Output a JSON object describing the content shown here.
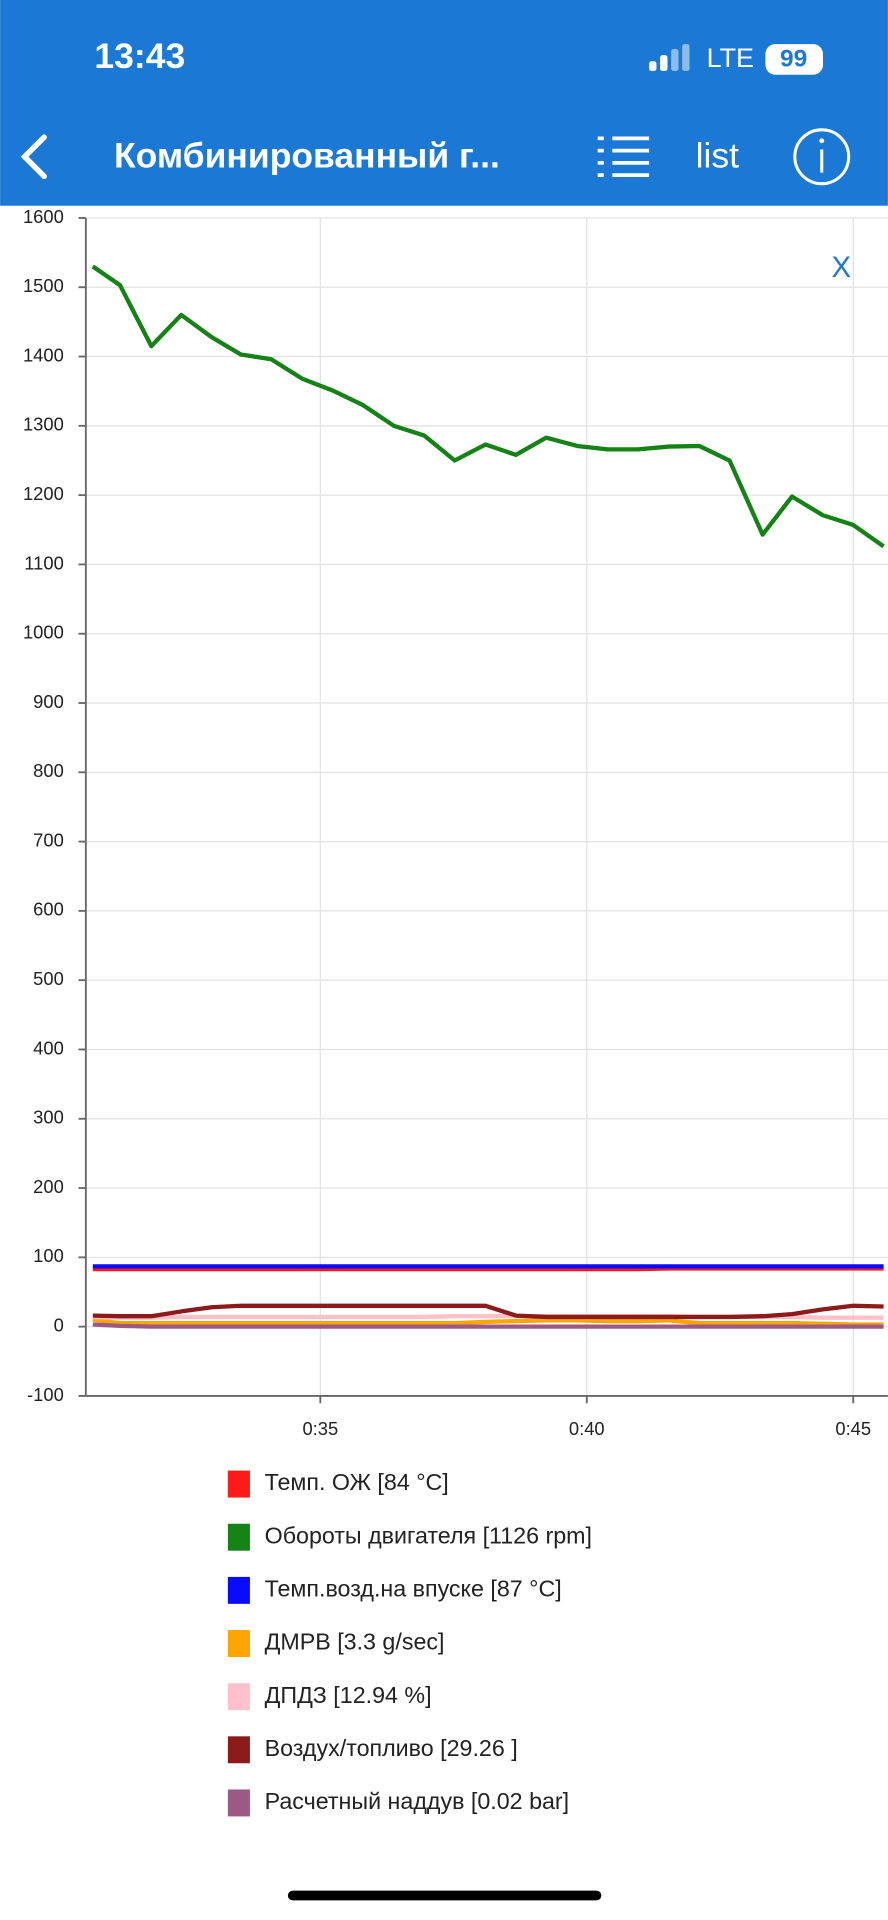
{
  "status_bar": {
    "time": "13:43",
    "network": "LTE",
    "battery": "99"
  },
  "header": {
    "title": "Комбинированный г...",
    "list_button": "list"
  },
  "close_button": "X",
  "chart_data": {
    "type": "line",
    "grid": true,
    "x": [
      30.73,
      31.24,
      31.83,
      32.39,
      32.96,
      33.51,
      34.08,
      34.66,
      35.23,
      35.8,
      36.38,
      36.95,
      37.52,
      38.1,
      38.67,
      39.24,
      39.82,
      40.39,
      40.96,
      41.54,
      42.11,
      42.68,
      43.3,
      43.85,
      44.43,
      45.0,
      45.57
    ],
    "xlim": [
      30.6,
      45.65
    ],
    "xticks": [
      {
        "value": 35,
        "label": "0:35"
      },
      {
        "value": 40,
        "label": "0:40"
      },
      {
        "value": 45,
        "label": "0:45"
      }
    ],
    "ylim": [
      -100,
      1600
    ],
    "yticks": [
      -100,
      0,
      100,
      200,
      300,
      400,
      500,
      600,
      700,
      800,
      900,
      1000,
      1100,
      1200,
      1300,
      1400,
      1500,
      1600
    ],
    "series": [
      {
        "name": "Темп. ОЖ [84 °C]",
        "color": "#ff1a1a",
        "values": [
          83,
          83,
          83,
          83,
          83,
          83,
          83,
          83,
          83,
          83,
          83,
          83,
          83,
          83,
          83,
          83,
          83,
          83,
          83,
          84,
          84,
          84,
          84,
          84,
          84,
          84,
          84
        ]
      },
      {
        "name": "Обороты двигателя [1126 rpm]",
        "color": "#148214",
        "values": [
          1530,
          1503,
          1415,
          1460,
          1428,
          1403,
          1396,
          1368,
          1351,
          1330,
          1300,
          1286,
          1250,
          1273,
          1258,
          1283,
          1271,
          1266,
          1266,
          1270,
          1271,
          1250,
          1143,
          1198,
          1171,
          1157,
          1126
        ]
      },
      {
        "name": "Темп.возд.на впуске [87 °C]",
        "color": "#0a0aff",
        "values": [
          87,
          87,
          87,
          87,
          87,
          87,
          87,
          87,
          87,
          87,
          87,
          87,
          87,
          87,
          87,
          87,
          87,
          87,
          87,
          87,
          87,
          87,
          87,
          87,
          87,
          87,
          87
        ]
      },
      {
        "name": "ДМРВ [3.3 g/sec]",
        "color": "#ffa500",
        "values": [
          10,
          5,
          5,
          5,
          5,
          5,
          5,
          5,
          5,
          5,
          5,
          5,
          5,
          7,
          8,
          9,
          9,
          8,
          8,
          9,
          5,
          5,
          5,
          5,
          4,
          3,
          3
        ]
      },
      {
        "name": "ДПДЗ [12.94 %]",
        "color": "#ffc0cb",
        "values": [
          14,
          13,
          13,
          14,
          14,
          14,
          14,
          14,
          14,
          14,
          14,
          14,
          15,
          15,
          15,
          15,
          15,
          15,
          15,
          15,
          14,
          14,
          14,
          14,
          13,
          13,
          13
        ]
      },
      {
        "name": "Воздух/топливо [29.26 ]",
        "color": "#8b1a1a",
        "values": [
          16,
          15,
          15,
          22,
          28,
          30,
          30,
          30,
          30,
          30,
          30,
          30,
          30,
          30,
          16,
          14,
          14,
          14,
          14,
          14,
          14,
          14,
          15,
          18,
          25,
          30,
          29
        ]
      },
      {
        "name": "Расчетный наддув [0.02 bar]",
        "color": "#9b5a86",
        "values": [
          3,
          1,
          0,
          0,
          0,
          0,
          0,
          0,
          0,
          0,
          0,
          0,
          0,
          0,
          0,
          0,
          0,
          0,
          0,
          0,
          0,
          0,
          0,
          0,
          0,
          0,
          0
        ]
      }
    ]
  }
}
